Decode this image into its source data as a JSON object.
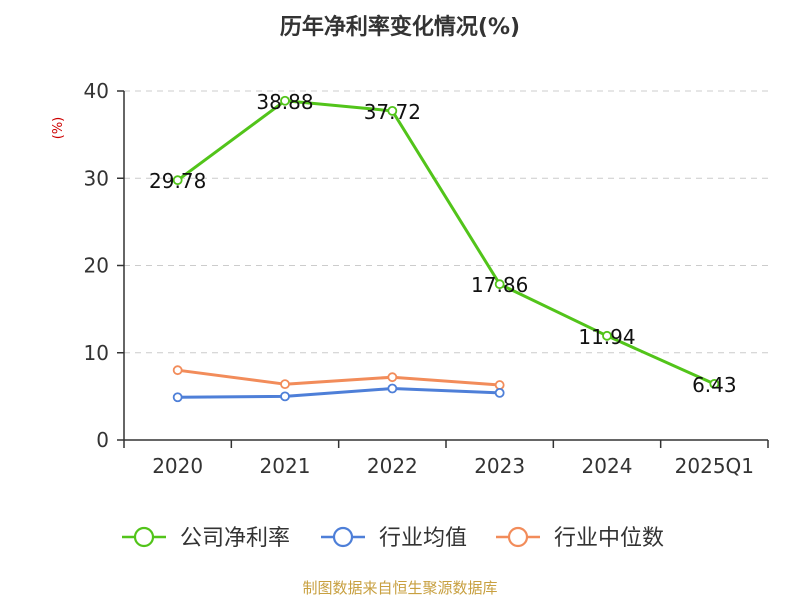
{
  "chart_data": {
    "type": "line",
    "title": "历年净利率变化情况(%)",
    "ylabel": "(%)",
    "categories": [
      "2020",
      "2021",
      "2022",
      "2023",
      "2024",
      "2025Q1"
    ],
    "ylim": [
      0,
      40
    ],
    "yticks": [
      0,
      10,
      20,
      30,
      40
    ],
    "grid": true,
    "legend_position": "bottom",
    "series": [
      {
        "name": "公司净利率",
        "color": "#52c41a",
        "values": [
          29.78,
          38.88,
          37.72,
          17.86,
          11.94,
          6.43
        ],
        "data_labels": [
          "29.78",
          "38.88",
          "37.72",
          "17.86",
          "11.94",
          "6.43"
        ]
      },
      {
        "name": "行业均值",
        "color": "#4e7fd8",
        "values": [
          4.9,
          5.0,
          5.9,
          5.4,
          null,
          null
        ]
      },
      {
        "name": "行业中位数",
        "color": "#f28c5a",
        "values": [
          8.0,
          6.4,
          7.2,
          6.3,
          null,
          null
        ]
      }
    ]
  },
  "footer": {
    "source": "制图数据来自恒生聚源数据库"
  }
}
